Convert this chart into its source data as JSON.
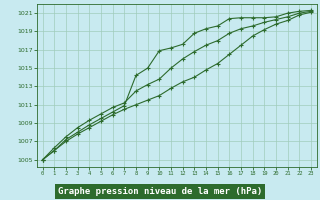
{
  "title": "Graphe pression niveau de la mer (hPa)",
  "background_color": "#c8eaf0",
  "plot_bg_color": "#c8eaf0",
  "grid_color": "#a0ccbb",
  "line_color": "#2d6b2d",
  "label_bg_color": "#2d6b2d",
  "label_text_color": "#ffffff",
  "x_values": [
    0,
    1,
    2,
    3,
    4,
    5,
    6,
    7,
    8,
    9,
    10,
    11,
    12,
    13,
    14,
    15,
    16,
    17,
    18,
    19,
    20,
    21,
    22,
    23
  ],
  "series1": [
    1005.0,
    1006.0,
    1007.2,
    1008.0,
    1008.8,
    1009.5,
    1010.2,
    1010.9,
    1014.2,
    1015.0,
    1016.9,
    1017.2,
    1017.6,
    1018.8,
    1019.3,
    1019.6,
    1020.4,
    1020.5,
    1020.5,
    1020.5,
    1020.6,
    1021.0,
    1021.2,
    1021.3
  ],
  "series2": [
    1005.0,
    1006.3,
    1007.5,
    1008.5,
    1009.3,
    1010.0,
    1010.7,
    1011.2,
    1012.5,
    1013.2,
    1013.8,
    1015.0,
    1016.0,
    1016.8,
    1017.5,
    1018.0,
    1018.8,
    1019.3,
    1019.6,
    1020.0,
    1020.3,
    1020.6,
    1021.0,
    1021.2
  ],
  "series3": [
    1005.0,
    1006.0,
    1007.0,
    1007.8,
    1008.5,
    1009.2,
    1009.9,
    1010.5,
    1011.0,
    1011.5,
    1012.0,
    1012.8,
    1013.5,
    1014.0,
    1014.8,
    1015.5,
    1016.5,
    1017.5,
    1018.5,
    1019.2,
    1019.8,
    1020.2,
    1020.8,
    1021.1
  ],
  "ylim": [
    1004.2,
    1022.0
  ],
  "yticks": [
    1005,
    1007,
    1009,
    1011,
    1013,
    1015,
    1017,
    1019,
    1021
  ],
  "xlim": [
    -0.5,
    23.5
  ],
  "xticks": [
    0,
    1,
    2,
    3,
    4,
    5,
    6,
    7,
    8,
    9,
    10,
    11,
    12,
    13,
    14,
    15,
    16,
    17,
    18,
    19,
    20,
    21,
    22,
    23
  ]
}
